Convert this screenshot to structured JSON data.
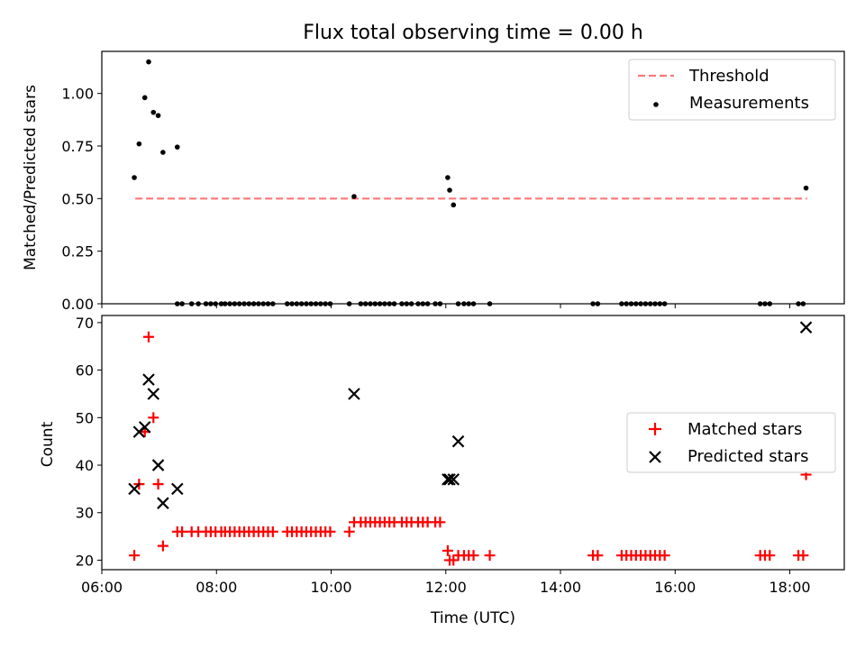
{
  "title": "Flux total observing time = 0.00 h",
  "colors": {
    "threshold": "#ff7777",
    "measurement": "#000000",
    "matched": "#ff0000",
    "predicted": "#000000"
  },
  "chart_data": [
    {
      "type": "scatter",
      "ylabel": "Matched/Predicted stars",
      "ylim": [
        0,
        1.2
      ],
      "xlim_hours": [
        6.0,
        18.95
      ],
      "yticks": [
        "0.00",
        "0.25",
        "0.50",
        "0.75",
        "1.00"
      ],
      "legend": {
        "position": "top-right",
        "entries": [
          "Threshold",
          "Measurements"
        ]
      },
      "threshold": {
        "name": "Threshold",
        "y": 0.5,
        "x_from": "06:35",
        "x_to": "18:18",
        "style": "dashed"
      },
      "series": [
        {
          "name": "Measurements",
          "x": [
            "06:34",
            "06:39",
            "06:45",
            "06:49",
            "06:54",
            "06:59",
            "07:04",
            "07:19",
            "07:19",
            "07:24",
            "07:34",
            "07:41",
            "07:49",
            "07:54",
            "07:59",
            "08:05",
            "08:09",
            "08:14",
            "08:19",
            "08:24",
            "08:29",
            "08:34",
            "08:39",
            "08:44",
            "08:49",
            "08:54",
            "08:59",
            "09:14",
            "09:19",
            "09:24",
            "09:29",
            "09:34",
            "09:39",
            "09:44",
            "09:49",
            "09:54",
            "09:59",
            "10:19",
            "10:24",
            "10:31",
            "10:36",
            "10:41",
            "10:46",
            "10:51",
            "10:56",
            "11:01",
            "11:06",
            "11:14",
            "11:19",
            "11:24",
            "11:31",
            "11:36",
            "11:41",
            "11:49",
            "11:54",
            "12:02",
            "12:04",
            "12:08",
            "12:13",
            "12:19",
            "12:24",
            "12:29",
            "12:46",
            "14:34",
            "14:39",
            "15:04",
            "15:09",
            "15:14",
            "15:19",
            "15:24",
            "15:29",
            "15:34",
            "15:39",
            "15:44",
            "15:49",
            "17:29",
            "17:34",
            "17:39",
            "18:09",
            "18:14",
            "18:17"
          ],
          "y": [
            0.6,
            0.76,
            0.98,
            1.15,
            0.91,
            0.895,
            0.72,
            0.745,
            0,
            0,
            0,
            0,
            0,
            0,
            0,
            0,
            0,
            0,
            0,
            0,
            0,
            0,
            0,
            0,
            0,
            0,
            0,
            0,
            0,
            0,
            0,
            0,
            0,
            0,
            0,
            0,
            0,
            0,
            0.51,
            0,
            0,
            0,
            0,
            0,
            0,
            0,
            0,
            0,
            0,
            0,
            0,
            0,
            0,
            0,
            0,
            0.6,
            0.54,
            0.47,
            0,
            0,
            0,
            0,
            0,
            0,
            0,
            0,
            0,
            0,
            0,
            0,
            0,
            0,
            0,
            0,
            0,
            0,
            0,
            0,
            0,
            0,
            0.55
          ]
        }
      ]
    },
    {
      "type": "scatter",
      "ylabel": "Count",
      "xlabel": "Time (UTC)",
      "ylim": [
        18,
        71.5
      ],
      "xlim_hours": [
        6.0,
        18.95
      ],
      "yticks": [
        "20",
        "30",
        "40",
        "50",
        "60",
        "70"
      ],
      "xticks": [
        "06:00",
        "08:00",
        "10:00",
        "12:00",
        "14:00",
        "16:00",
        "18:00"
      ],
      "legend": {
        "position": "center-right",
        "entries": [
          "Matched stars",
          "Predicted stars"
        ]
      },
      "series": [
        {
          "name": "Matched stars",
          "x": [
            "06:34",
            "06:39",
            "06:45",
            "06:49",
            "06:54",
            "06:59",
            "07:04",
            "07:19",
            "07:24",
            "07:34",
            "07:41",
            "07:49",
            "07:54",
            "07:59",
            "08:05",
            "08:09",
            "08:14",
            "08:19",
            "08:24",
            "08:29",
            "08:34",
            "08:39",
            "08:44",
            "08:49",
            "08:54",
            "08:59",
            "09:14",
            "09:19",
            "09:24",
            "09:29",
            "09:34",
            "09:39",
            "09:44",
            "09:49",
            "09:54",
            "09:59",
            "10:19",
            "10:24",
            "10:31",
            "10:36",
            "10:41",
            "10:46",
            "10:51",
            "10:56",
            "11:01",
            "11:06",
            "11:14",
            "11:19",
            "11:24",
            "11:31",
            "11:36",
            "11:41",
            "11:49",
            "11:54",
            "12:02",
            "12:04",
            "12:08",
            "12:13",
            "12:19",
            "12:24",
            "12:29",
            "12:46",
            "14:34",
            "14:39",
            "15:04",
            "15:09",
            "15:14",
            "15:19",
            "15:24",
            "15:29",
            "15:34",
            "15:39",
            "15:44",
            "15:49",
            "17:29",
            "17:34",
            "17:39",
            "18:09",
            "18:14",
            "18:17"
          ],
          "y": [
            21,
            36,
            47,
            67,
            50,
            36,
            23,
            26,
            26,
            26,
            26,
            26,
            26,
            26,
            26,
            26,
            26,
            26,
            26,
            26,
            26,
            26,
            26,
            26,
            26,
            26,
            26,
            26,
            26,
            26,
            26,
            26,
            26,
            26,
            26,
            26,
            26,
            28,
            28,
            28,
            28,
            28,
            28,
            28,
            28,
            28,
            28,
            28,
            28,
            28,
            28,
            28,
            28,
            28,
            22,
            20,
            20,
            21,
            21,
            21,
            21,
            21,
            21,
            21,
            21,
            21,
            21,
            21,
            21,
            21,
            21,
            21,
            21,
            21,
            21,
            21,
            21,
            21,
            21,
            38
          ]
        },
        {
          "name": "Predicted stars",
          "x": [
            "06:34",
            "06:39",
            "06:45",
            "06:49",
            "06:54",
            "06:59",
            "07:04",
            "07:19",
            "10:24",
            "12:02",
            "12:04",
            "12:08",
            "12:13",
            "18:17"
          ],
          "y": [
            35,
            47,
            48,
            58,
            55,
            40,
            32,
            35,
            55,
            37,
            37,
            37,
            45,
            69
          ]
        }
      ]
    }
  ]
}
